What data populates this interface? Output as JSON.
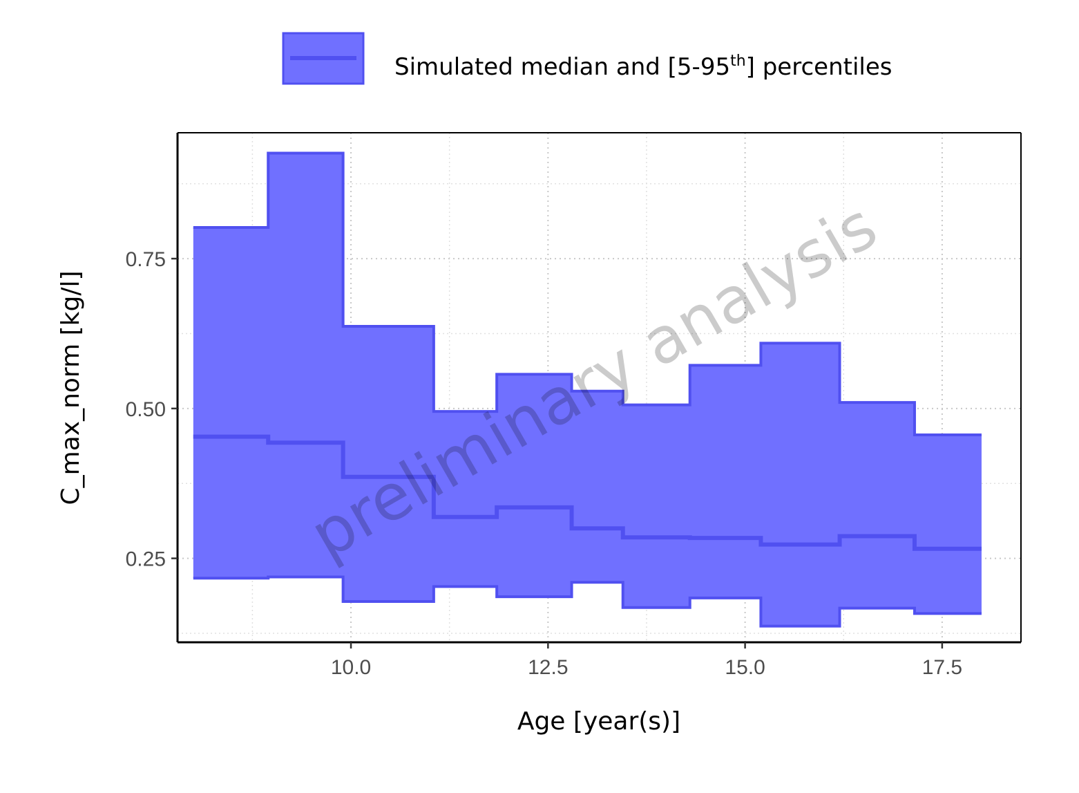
{
  "chart_data": {
    "type": "area",
    "xlabel": "Age [year(s)]",
    "ylabel": "C_max_norm [kg/l]",
    "watermark": "preliminary analysis",
    "xlim": [
      7.8,
      18.5
    ],
    "ylim": [
      0.11,
      0.96
    ],
    "x_ticks": [
      10.0,
      12.5,
      15.0,
      17.5
    ],
    "x_tick_labels": [
      "10.0",
      "12.5",
      "15.0",
      "17.5"
    ],
    "y_ticks": [
      0.25,
      0.5,
      0.75
    ],
    "y_tick_labels": [
      "0.25",
      "0.50",
      "0.75"
    ],
    "grid": true,
    "legend": {
      "position": "top",
      "label_main": "Simulated median and [5-95",
      "label_sup": "th",
      "label_end": "] percentiles"
    },
    "fill_color": "#7070ff",
    "line_color": "#5050f0",
    "bins": [
      {
        "x0": 8.0,
        "x1": 8.95,
        "p5": 0.217,
        "median": 0.453,
        "p95": 0.802
      },
      {
        "x0": 8.95,
        "x1": 9.9,
        "p5": 0.219,
        "median": 0.443,
        "p95": 0.926
      },
      {
        "x0": 9.9,
        "x1": 11.05,
        "p5": 0.178,
        "median": 0.386,
        "p95": 0.637
      },
      {
        "x0": 11.05,
        "x1": 11.85,
        "p5": 0.203,
        "median": 0.319,
        "p95": 0.495
      },
      {
        "x0": 11.85,
        "x1": 12.8,
        "p5": 0.186,
        "median": 0.335,
        "p95": 0.557
      },
      {
        "x0": 12.8,
        "x1": 13.45,
        "p5": 0.21,
        "median": 0.3,
        "p95": 0.529
      },
      {
        "x0": 13.45,
        "x1": 14.3,
        "p5": 0.168,
        "median": 0.285,
        "p95": 0.506
      },
      {
        "x0": 14.3,
        "x1": 15.2,
        "p5": 0.184,
        "median": 0.284,
        "p95": 0.572
      },
      {
        "x0": 15.2,
        "x1": 16.2,
        "p5": 0.137,
        "median": 0.273,
        "p95": 0.609
      },
      {
        "x0": 16.2,
        "x1": 17.15,
        "p5": 0.167,
        "median": 0.287,
        "p95": 0.51
      },
      {
        "x0": 17.15,
        "x1": 18.0,
        "p5": 0.158,
        "median": 0.266,
        "p95": 0.456
      }
    ]
  }
}
